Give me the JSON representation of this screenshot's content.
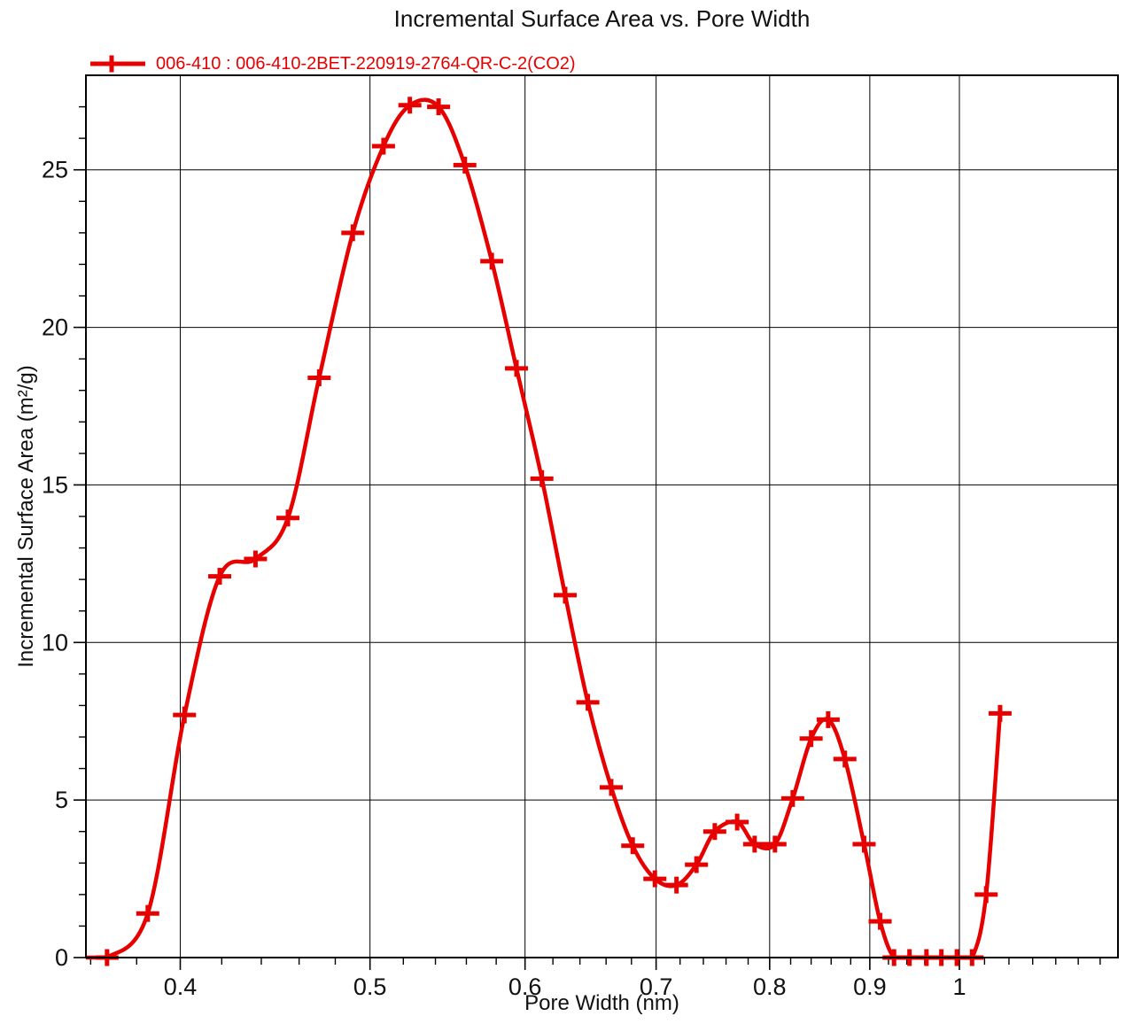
{
  "title": "Incremental Surface Area vs. Pore Width",
  "legend": {
    "label": "006-410 : 006-410-2BET-220919-2764-QR-C-2(CO2)"
  },
  "colors": {
    "series": "#e60000",
    "axis": "#000000",
    "grid": "#000000",
    "background": "#ffffff",
    "text": "#111111"
  },
  "chart_data": {
    "type": "line",
    "title": "Incremental Surface Area vs. Pore Width",
    "xlabel": "Pore Width (nm)",
    "ylabel": "Incremental Surface Area (m²/g)",
    "x_scale": "log",
    "xlim": [
      0.358,
      1.205
    ],
    "ylim": [
      0,
      28
    ],
    "grid": true,
    "legend_position": "top-left",
    "x_major_ticks": [
      0.4,
      0.5,
      0.6,
      0.7,
      0.8,
      0.9,
      1
    ],
    "x_major_tick_labels": [
      "0.4",
      "0.5",
      "0.6",
      "0.7",
      "0.8",
      "0.9",
      "1"
    ],
    "x_minor_ticks": [
      0.36,
      0.38,
      0.42,
      0.44,
      0.46,
      0.48,
      0.52,
      0.54,
      0.56,
      0.58,
      0.62,
      0.64,
      0.66,
      0.68,
      0.72,
      0.74,
      0.76,
      0.78,
      0.82,
      0.84,
      0.86,
      0.88,
      0.92,
      0.94,
      0.96,
      0.98,
      1.03,
      1.06,
      1.09,
      1.12,
      1.15,
      1.18
    ],
    "y_major_ticks": [
      0,
      5,
      10,
      15,
      20,
      25
    ],
    "y_major_tick_labels": [
      "0",
      "5",
      "10",
      "15",
      "20",
      "25"
    ],
    "y_minor_ticks": [
      1,
      2,
      3,
      4,
      6,
      7,
      8,
      9,
      11,
      12,
      13,
      14,
      16,
      17,
      18,
      19,
      21,
      22,
      23,
      24,
      26,
      27
    ],
    "series": [
      {
        "name": "006-410 : 006-410-2BET-220919-2764-QR-C-2(CO2)",
        "color": "#e60000",
        "marker": "plus",
        "line_start_x": 0.358,
        "x": [
          0.367,
          0.385,
          0.402,
          0.419,
          0.437,
          0.454,
          0.471,
          0.49,
          0.508,
          0.524,
          0.542,
          0.559,
          0.577,
          0.594,
          0.612,
          0.629,
          0.646,
          0.664,
          0.681,
          0.699,
          0.717,
          0.734,
          0.75,
          0.77,
          0.786,
          0.805,
          0.822,
          0.84,
          0.857,
          0.874,
          0.894,
          0.911,
          0.926,
          0.943,
          0.962,
          0.979,
          0.997,
          1.015,
          1.032,
          1.049
        ],
        "y": [
          0,
          1.4,
          7.7,
          12.1,
          12.65,
          13.95,
          18.4,
          23.0,
          25.75,
          27.05,
          27.0,
          25.15,
          22.1,
          18.7,
          15.2,
          11.5,
          8.1,
          5.4,
          3.55,
          2.5,
          2.3,
          2.95,
          4.0,
          4.3,
          3.6,
          3.6,
          5.05,
          6.95,
          7.55,
          6.3,
          3.6,
          1.15,
          0,
          0,
          0,
          0,
          0,
          0,
          2.0,
          7.75
        ]
      }
    ]
  }
}
